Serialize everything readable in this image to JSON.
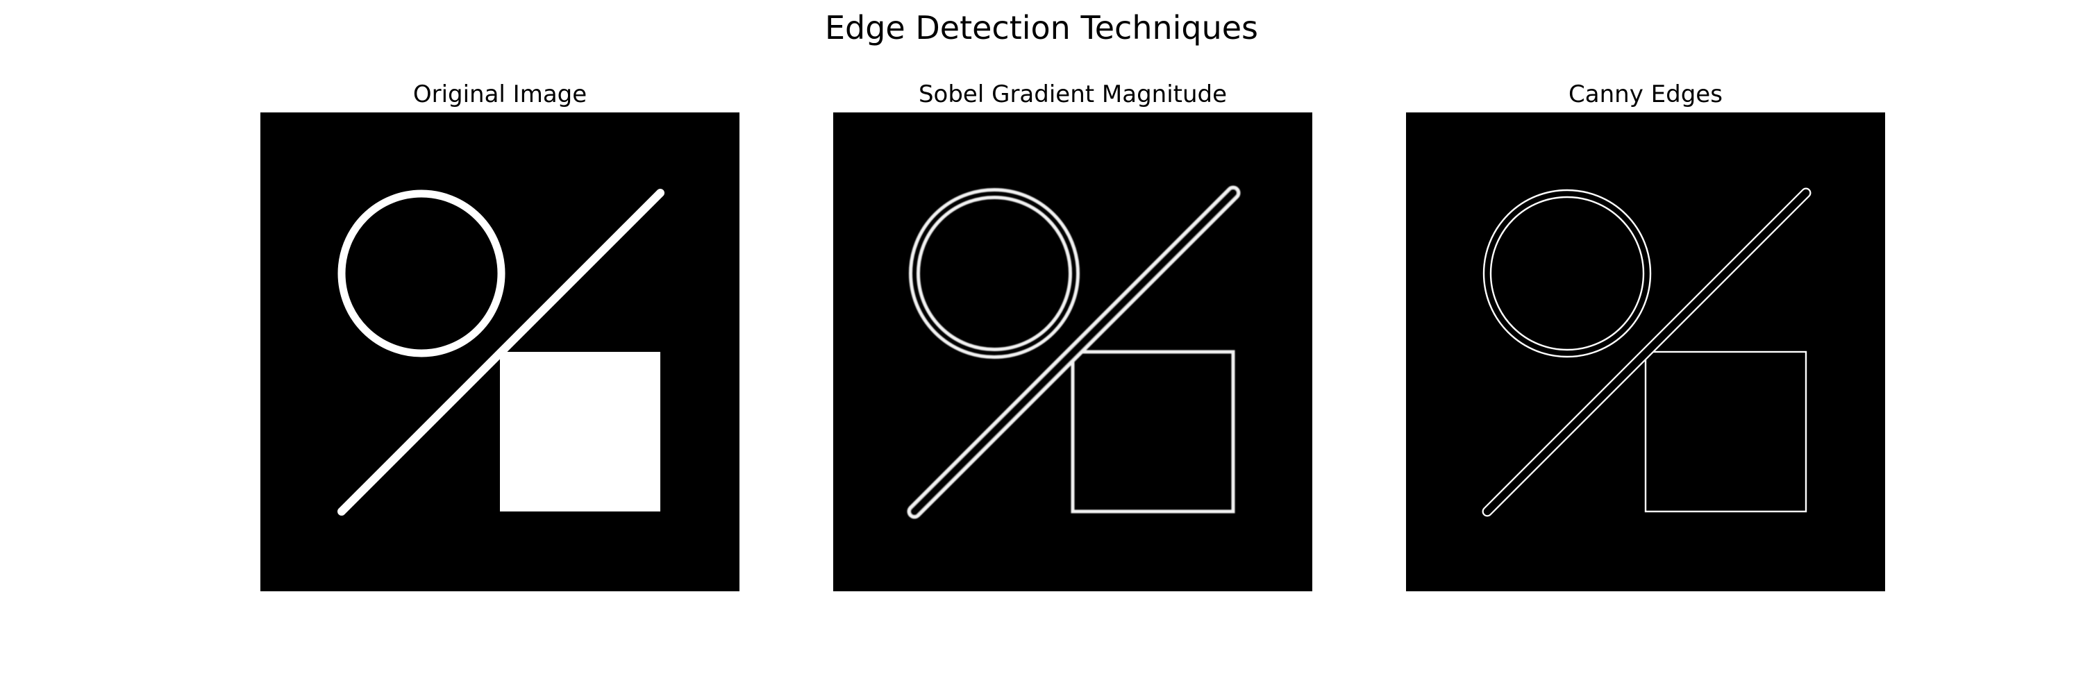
{
  "figure": {
    "title": "Edge Detection Techniques"
  },
  "panels": [
    {
      "title": "Original Image"
    },
    {
      "title": "Sobel Gradient Magnitude"
    },
    {
      "title": "Canny Edges"
    }
  ],
  "colors": {
    "background": "#ffffff",
    "image_background": "#000000",
    "foreground": "#ffffff"
  }
}
